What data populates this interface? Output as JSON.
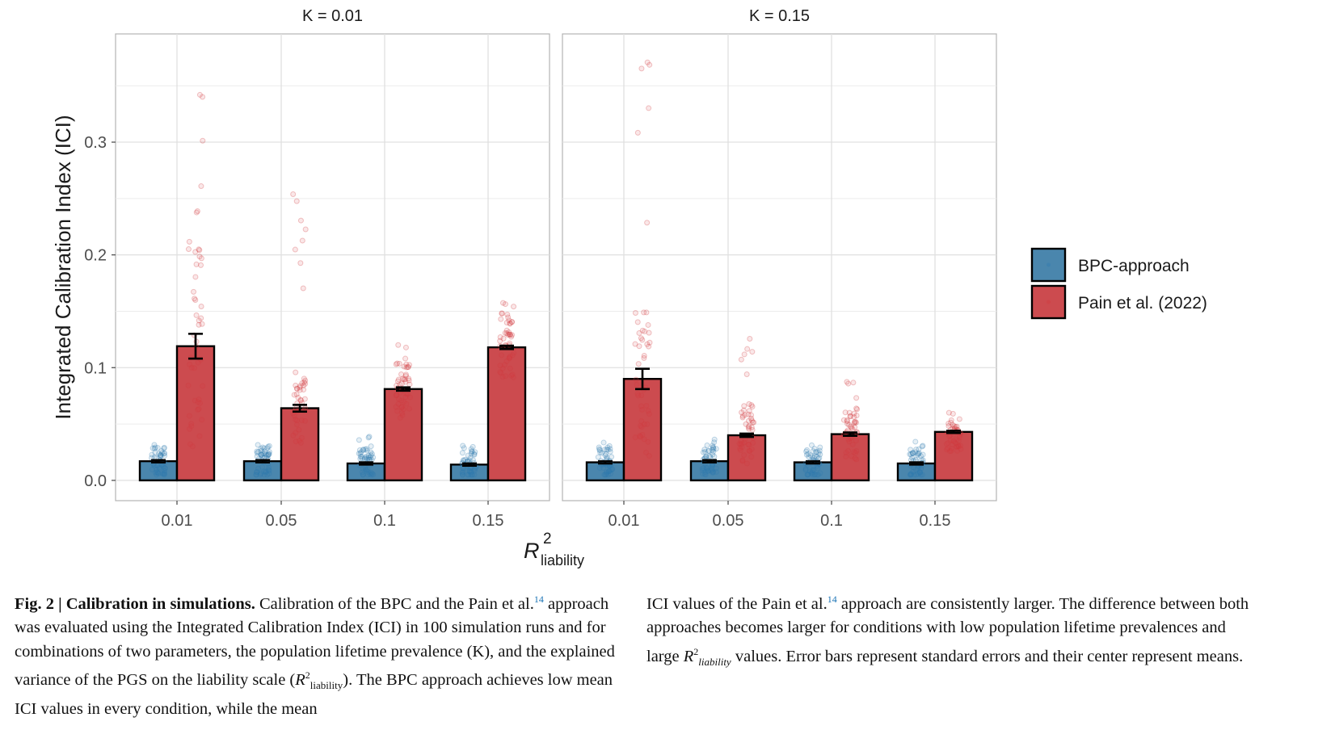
{
  "chart_data": {
    "type": "bar",
    "title": "",
    "ylabel": "Integrated Calibration Index (ICI)",
    "xlabel_main": "R",
    "xlabel_sup": "2",
    "xlabel_sub": "liability",
    "ylim": [
      -0.018,
      0.396
    ],
    "yticks": [
      0.0,
      0.1,
      0.2,
      0.3
    ],
    "ytick_labels": [
      "0.0",
      "0.1",
      "0.2",
      "0.3"
    ],
    "grid": true,
    "legend_position": "right",
    "categories": [
      "0.01",
      "0.05",
      "0.1",
      "0.15"
    ],
    "legend": [
      {
        "name": "BPC-approach",
        "color": "#4a86ad"
      },
      {
        "name": "Pain et al. (2022)",
        "color": "#cc4b4f"
      }
    ],
    "panels": [
      {
        "title": "K = 0.01",
        "series": [
          {
            "name": "BPC-approach",
            "values": [
              0.017,
              0.017,
              0.015,
              0.014
            ],
            "se": [
              0.001,
              0.001,
              0.001,
              0.001
            ],
            "points_range": [
              [
                0.005,
                0.035
              ],
              [
                0.005,
                0.038
              ],
              [
                0.005,
                0.042
              ],
              [
                0.005,
                0.032
              ]
            ]
          },
          {
            "name": "Pain et al. (2022)",
            "values": [
              0.119,
              0.064,
              0.081,
              0.118
            ],
            "se": [
              0.011,
              0.003,
              0.0015,
              0.0015
            ],
            "points_range": [
              [
                0.008,
                0.355
              ],
              [
                0.03,
                0.255
              ],
              [
                0.055,
                0.122
              ],
              [
                0.09,
                0.158
              ]
            ]
          }
        ]
      },
      {
        "title": "K = 0.15",
        "series": [
          {
            "name": "BPC-approach",
            "values": [
              0.016,
              0.017,
              0.016,
              0.015
            ],
            "se": [
              0.001,
              0.001,
              0.001,
              0.001
            ],
            "points_range": [
              [
                0.005,
                0.037
              ],
              [
                0.005,
                0.037
              ],
              [
                0.005,
                0.048
              ],
              [
                0.005,
                0.036
              ]
            ]
          },
          {
            "name": "Pain et al. (2022)",
            "values": [
              0.09,
              0.04,
              0.041,
              0.043
            ],
            "se": [
              0.009,
              0.0015,
              0.0015,
              0.001
            ],
            "points_range": [
              [
                0.01,
                0.378
              ],
              [
                0.012,
                0.128
              ],
              [
                0.018,
                0.096
              ],
              [
                0.025,
                0.06
              ]
            ]
          }
        ]
      }
    ]
  },
  "caption": {
    "fig_label": "Fig. 2 | Calibration in simulations.",
    "col1_text_a": " Calibration of the BPC and the Pain et al.",
    "ref1": "14",
    "col1_text_b": " approach was evaluated using the Integrated Calibration Index (ICI) in 100 simulation runs and for combinations of two parameters, the population lifetime prevalence (K), and the explained variance of the PGS on the liability scale (",
    "r2_R": "R",
    "r2_sup": "2",
    "r2_sub": "liability",
    "col1_text_c": "). The BPC approach achieves low mean ICI values in every condition, while the mean",
    "col2_text_a": "ICI values of the Pain et al.",
    "ref2": "14",
    "col2_text_b": " approach are consistently larger. The difference between both approaches becomes larger for conditions with low population lifetime prevalences and large ",
    "col2_text_c": " values. Error bars represent standard errors and their center represent means."
  }
}
